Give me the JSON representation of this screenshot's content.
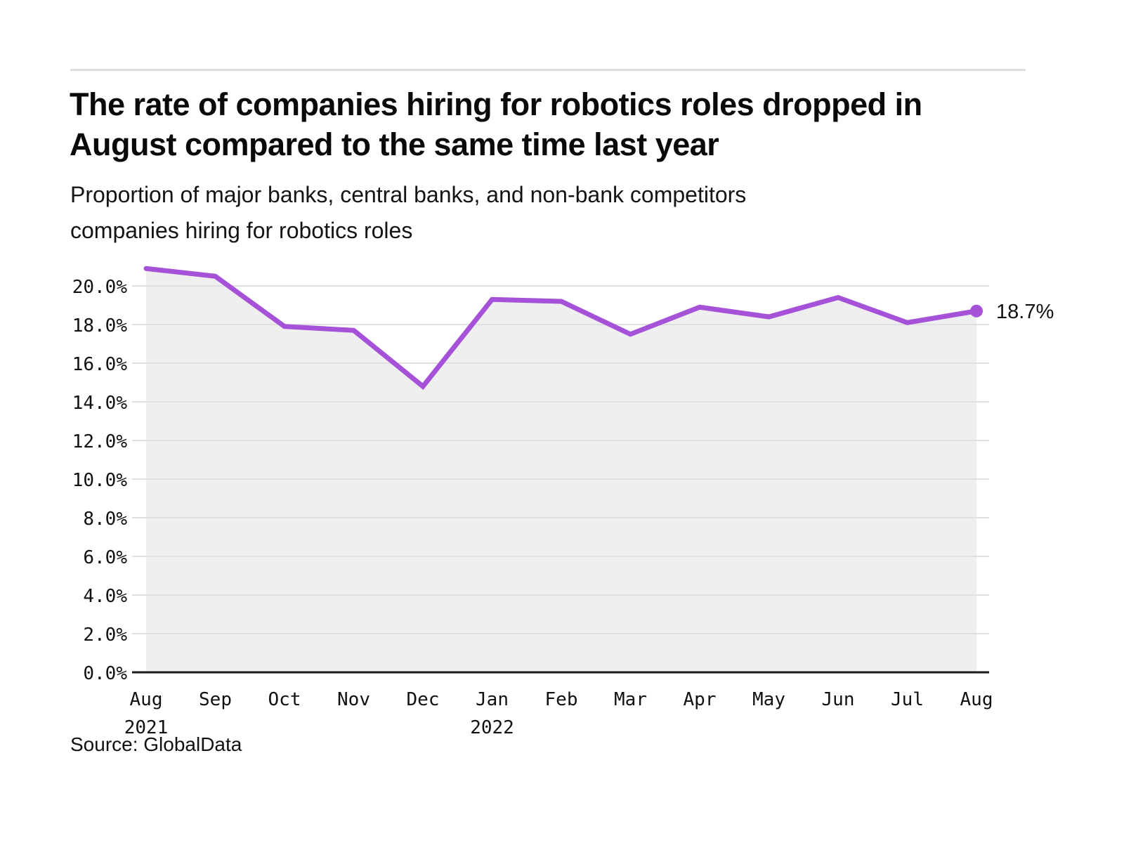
{
  "header": {
    "title": "The rate of companies hiring for robotics roles dropped in\nAugust compared to the same time last year",
    "subtitle": "Proportion of major banks, central banks, and non-bank competitors\ncompanies hiring for robotics roles"
  },
  "footer": {
    "source": "Source: GlobalData"
  },
  "chart_data": {
    "type": "area",
    "title": "The rate of companies hiring for robotics roles dropped in August compared to the same time last year",
    "subtitle": "Proportion of major banks, central banks, and non-bank competitors companies hiring for robotics roles",
    "categories": [
      "Aug 2021",
      "Sep",
      "Oct",
      "Nov",
      "Dec",
      "Jan 2022",
      "Feb",
      "Mar",
      "Apr",
      "May",
      "Jun",
      "Jul",
      "Aug"
    ],
    "x_months": [
      "Aug",
      "Sep",
      "Oct",
      "Nov",
      "Dec",
      "Jan",
      "Feb",
      "Mar",
      "Apr",
      "May",
      "Jun",
      "Jul",
      "Aug"
    ],
    "x_years": {
      "0": "2021",
      "5": "2022"
    },
    "series": [
      {
        "name": "Proportion of companies hiring for robotics roles",
        "values": [
          20.9,
          20.5,
          17.9,
          17.7,
          14.8,
          19.3,
          19.2,
          17.5,
          18.9,
          18.4,
          19.4,
          18.1,
          18.7
        ]
      }
    ],
    "end_label": "18.7%",
    "xlabel": "",
    "ylabel": "",
    "ylim": [
      0,
      21.5
    ],
    "ytick_step": 2,
    "ytick_suffix": "%",
    "grid": true,
    "legend": "none",
    "colors": {
      "line": "#a552d8",
      "marker": "#a552d8",
      "area_fill": "#efefef",
      "grid": "#e0e0e0",
      "axis": "#1a1a1a",
      "text": "#111111"
    }
  }
}
